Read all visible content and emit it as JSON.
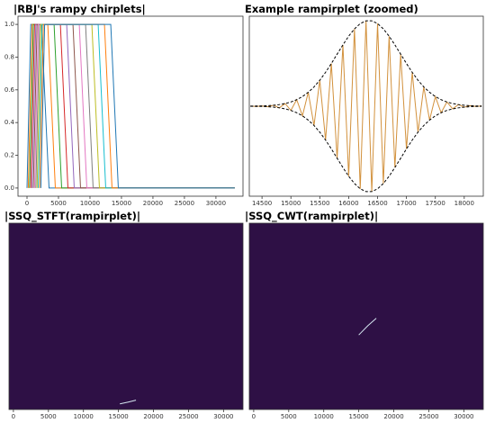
{
  "chart_data": [
    {
      "type": "line",
      "title": "|RBJ's rampy chirplets|",
      "xlim": [
        -1430,
        34300
      ],
      "ylim": [
        -0.05,
        1.05
      ],
      "xticks": [
        0,
        5000,
        10000,
        15000,
        20000,
        25000,
        30000
      ],
      "yticks": [
        {
          "value": 0,
          "label": "0.0"
        },
        0.2,
        0.4,
        0.6,
        0.8,
        {
          "value": 1,
          "label": "1.0"
        }
      ],
      "series": [
        {
          "color": "#1f77b4",
          "x": [
            0,
            600,
            2300,
            3500,
            33000
          ],
          "values": [
            0,
            1,
            1,
            0,
            0
          ]
        },
        {
          "color": "#ff7f0e",
          "x": [
            200,
            800,
            3300,
            4500,
            33000
          ],
          "values": [
            0,
            1,
            1,
            0,
            0
          ]
        },
        {
          "color": "#2ca02c",
          "x": [
            400,
            1000,
            4300,
            5500,
            33000
          ],
          "values": [
            0,
            1,
            1,
            0,
            0
          ]
        },
        {
          "color": "#d62728",
          "x": [
            600,
            1200,
            5300,
            6500,
            33000
          ],
          "values": [
            0,
            1,
            1,
            0,
            0
          ]
        },
        {
          "color": "#9467bd",
          "x": [
            800,
            1400,
            6300,
            7500,
            33000
          ],
          "values": [
            0,
            1,
            1,
            0,
            0
          ]
        },
        {
          "color": "#8c564b",
          "x": [
            1000,
            1600,
            7300,
            8500,
            33000
          ],
          "values": [
            0,
            1,
            1,
            0,
            0
          ]
        },
        {
          "color": "#e377c2",
          "x": [
            1200,
            1800,
            8300,
            9500,
            33000
          ],
          "values": [
            0,
            1,
            1,
            0,
            0
          ]
        },
        {
          "color": "#7f7f7f",
          "x": [
            1400,
            2000,
            9300,
            10500,
            33000
          ],
          "values": [
            0,
            1,
            1,
            0,
            0
          ]
        },
        {
          "color": "#bcbd22",
          "x": [
            1600,
            2200,
            10300,
            11500,
            33000
          ],
          "values": [
            0,
            1,
            1,
            0,
            0
          ]
        },
        {
          "color": "#17becf",
          "x": [
            1800,
            2400,
            11300,
            12500,
            33000
          ],
          "values": [
            0,
            1,
            1,
            0,
            0
          ]
        },
        {
          "color": "#ff7f0e",
          "x": [
            2000,
            2600,
            12300,
            13500,
            33000
          ],
          "values": [
            0,
            1,
            1,
            0,
            0
          ]
        },
        {
          "color": "#1f77b4",
          "x": [
            2200,
            2800,
            13300,
            14500,
            33000
          ],
          "values": [
            0,
            1,
            1,
            0,
            0
          ]
        }
      ]
    },
    {
      "type": "line",
      "title": "Example rampirplet (zoomed)",
      "xlim": [
        14280,
        18330
      ],
      "ylim": [
        -1.05,
        1.05
      ],
      "xticks": [
        14500,
        15000,
        15500,
        16000,
        16500,
        17000,
        17500,
        18000
      ],
      "series": [
        {
          "color": "#d2913c",
          "x": [
            14300,
            14400,
            14500,
            14600,
            14700,
            14800,
            14900,
            15000,
            15100,
            15200,
            15300,
            15400,
            15500,
            15600,
            15700,
            15800,
            15900,
            16000,
            16100,
            16200,
            16300,
            16400,
            16500,
            16600,
            16700,
            16800,
            16900,
            17000,
            17100,
            17200,
            17300,
            17400,
            17500,
            17600,
            17700,
            17800,
            17900,
            18000,
            18100,
            18200,
            18300
          ],
          "values": [
            0.001,
            -0.002,
            0.003,
            -0.006,
            0.011,
            -0.019,
            0.031,
            -0.049,
            0.076,
            -0.112,
            0.162,
            -0.225,
            0.303,
            -0.395,
            0.498,
            -0.607,
            0.715,
            -0.817,
            0.902,
            -0.964,
            0.996,
            -0.996,
            0.964,
            -0.902,
            0.817,
            -0.715,
            0.607,
            -0.498,
            0.395,
            -0.303,
            0.225,
            -0.162,
            0.112,
            -0.076,
            0.049,
            -0.031,
            0.019,
            -0.011,
            0.006,
            -0.003,
            0.002
          ]
        },
        {
          "color": "#000000",
          "linestyle": "dashed",
          "x": [
            14300,
            14400,
            14500,
            14600,
            14700,
            14800,
            14900,
            15000,
            15100,
            15200,
            15300,
            15400,
            15500,
            15600,
            15700,
            15800,
            15900,
            16000,
            16100,
            16200,
            16300,
            16400,
            16500,
            16600,
            16700,
            16800,
            16900,
            17000,
            17100,
            17200,
            17300,
            17400,
            17500,
            17600,
            17700,
            17800,
            17900,
            18000,
            18100,
            18200,
            18300
          ],
          "values": [
            0.001,
            0.002,
            0.003,
            0.006,
            0.011,
            0.019,
            0.031,
            0.049,
            0.076,
            0.112,
            0.162,
            0.225,
            0.303,
            0.395,
            0.498,
            0.607,
            0.715,
            0.817,
            0.902,
            0.964,
            0.996,
            0.996,
            0.964,
            0.902,
            0.817,
            0.715,
            0.607,
            0.498,
            0.395,
            0.303,
            0.225,
            0.162,
            0.112,
            0.076,
            0.049,
            0.031,
            0.019,
            0.011,
            0.006,
            0.003,
            0.002
          ]
        },
        {
          "color": "#000000",
          "linestyle": "dashed",
          "x": [
            14300,
            14400,
            14500,
            14600,
            14700,
            14800,
            14900,
            15000,
            15100,
            15200,
            15300,
            15400,
            15500,
            15600,
            15700,
            15800,
            15900,
            16000,
            16100,
            16200,
            16300,
            16400,
            16500,
            16600,
            16700,
            16800,
            16900,
            17000,
            17100,
            17200,
            17300,
            17400,
            17500,
            17600,
            17700,
            17800,
            17900,
            18000,
            18100,
            18200,
            18300
          ],
          "values": [
            -0.001,
            -0.002,
            -0.003,
            -0.006,
            -0.011,
            -0.019,
            -0.031,
            -0.049,
            -0.076,
            -0.112,
            -0.162,
            -0.225,
            -0.303,
            -0.395,
            -0.498,
            -0.607,
            -0.715,
            -0.817,
            -0.902,
            -0.964,
            -0.996,
            -0.996,
            -0.964,
            -0.902,
            -0.817,
            -0.715,
            -0.607,
            -0.498,
            -0.395,
            -0.303,
            -0.225,
            -0.162,
            -0.112,
            -0.076,
            -0.049,
            -0.031,
            -0.019,
            -0.011,
            -0.006,
            -0.003,
            -0.002
          ]
        }
      ]
    },
    {
      "type": "heatmap",
      "title": "|SSQ_STFT(rampirplet)|",
      "xlim": [
        -630,
        32780
      ],
      "ylim": [
        0,
        100
      ],
      "xticks": [
        0,
        5000,
        10000,
        15000,
        20000,
        25000,
        30000
      ],
      "background": "#2e1045",
      "ridge": {
        "color": "#d4e6f0",
        "x": [
          15200,
          16400,
          17500
        ],
        "values": [
          3,
          4,
          5
        ]
      }
    },
    {
      "type": "heatmap",
      "title": "|SSQ_CWT(rampirplet)|",
      "xlim": [
        -630,
        32780
      ],
      "ylim": [
        0,
        100
      ],
      "xticks": [
        0,
        5000,
        10000,
        15000,
        20000,
        25000,
        30000
      ],
      "background": "#2e1045",
      "ridge": {
        "color": "#d4e6f0",
        "x": [
          15000,
          16300,
          17500
        ],
        "values": [
          40,
          45,
          49
        ]
      }
    }
  ]
}
